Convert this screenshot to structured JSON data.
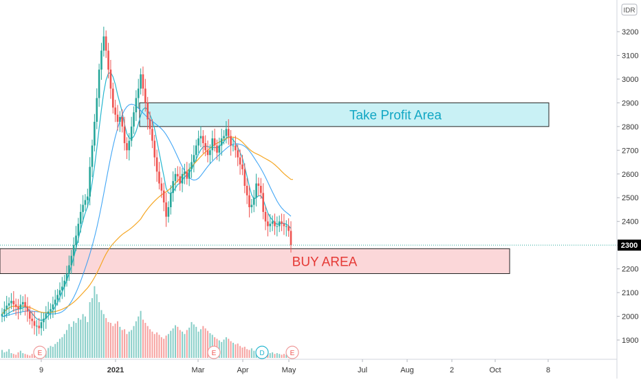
{
  "currency_badge": "IDR",
  "last_price_label": "2300",
  "colors": {
    "bull": "#26a69a",
    "bear": "#ef5350",
    "ma_fast": "#26b6cf",
    "ma_mid": "#2196f3",
    "ma_slow": "#f5a623",
    "take_profit_fill": "#c9f1f5",
    "take_profit_text": "#12a7c4",
    "buy_fill": "#fbd7d9",
    "buy_text": "#e53935",
    "last_price_badge": "#000000"
  },
  "chart_data": {
    "type": "candlestick",
    "y_axis": {
      "ticks": [
        "3200",
        "3100",
        "3000",
        "2900",
        "2800",
        "2700",
        "2600",
        "2500",
        "2400",
        "2300",
        "2200",
        "2100",
        "2000",
        "1900"
      ],
      "range": [
        1820,
        3300
      ]
    },
    "x_axis": {
      "ticks": [
        "9",
        "2021",
        "Mar",
        "Apr",
        "May",
        "Jul",
        "Aug",
        "2",
        "Oct",
        "8"
      ],
      "bold_ticks": [
        "2021"
      ]
    },
    "zones": [
      {
        "name": "take_profit",
        "label": "Take Profit Area",
        "low": 2800,
        "high": 2900
      },
      {
        "name": "buy",
        "label": "BUY AREA",
        "low": 2180,
        "high": 2285
      }
    ],
    "last_price": 2300,
    "event_markers": [
      {
        "label": "E",
        "type": "earnings"
      },
      {
        "label": "E",
        "type": "earnings"
      },
      {
        "label": "D",
        "type": "dividend"
      },
      {
        "label": "E",
        "type": "earnings"
      }
    ],
    "closes": [
      2010,
      2030,
      2045,
      2055,
      2065,
      2050,
      2040,
      2030,
      2050,
      2060,
      2040,
      2020,
      1990,
      1980,
      1960,
      1960,
      1950,
      1975,
      1990,
      2010,
      2020,
      2030,
      2050,
      2070,
      2090,
      2110,
      2125,
      2150,
      2180,
      2215,
      2255,
      2300,
      2340,
      2390,
      2440,
      2470,
      2490,
      2505,
      2630,
      2720,
      2820,
      2920,
      3040,
      3120,
      3180,
      3120,
      3040,
      2960,
      2880,
      2850,
      2820,
      2840,
      2800,
      2730,
      2700,
      2740,
      2800,
      2860,
      2920,
      2960,
      3020,
      2960,
      2900,
      2830,
      2790,
      2740,
      2670,
      2610,
      2560,
      2530,
      2480,
      2420,
      2460,
      2520,
      2570,
      2600,
      2590,
      2560,
      2600,
      2610,
      2580,
      2620,
      2650,
      2680,
      2720,
      2750,
      2760,
      2730,
      2700,
      2680,
      2700,
      2750,
      2720,
      2690,
      2720,
      2750,
      2760,
      2790,
      2760,
      2720,
      2720,
      2700,
      2670,
      2640,
      2620,
      2550,
      2510,
      2460,
      2470,
      2500,
      2560,
      2550,
      2520,
      2440,
      2400,
      2380,
      2390,
      2400,
      2380,
      2380,
      2400,
      2390,
      2380,
      2380,
      2360,
      2300
    ],
    "ma_fast": [
      2000,
      2000,
      2008,
      2014,
      2020,
      2025,
      2028,
      2030,
      2032,
      2036,
      2040,
      2035,
      2022,
      2012,
      2000,
      1990,
      1985,
      1983,
      1985,
      1992,
      2002,
      2012,
      2025,
      2040,
      2058,
      2080,
      2103,
      2127,
      2152,
      2180,
      2212,
      2248,
      2286,
      2326,
      2366,
      2404,
      2436,
      2462,
      2506,
      2564,
      2630,
      2708,
      2792,
      2872,
      2944,
      2996,
      3024,
      3028,
      3010,
      2978,
      2934,
      2898,
      2860,
      2810,
      2770,
      2752,
      2748,
      2758,
      2780,
      2812,
      2848,
      2872,
      2880,
      2870,
      2850,
      2826,
      2790,
      2740,
      2690,
      2640,
      2592,
      2540,
      2520,
      2518,
      2526,
      2540,
      2556,
      2560,
      2574,
      2588,
      2596,
      2604,
      2620,
      2640,
      2662,
      2684,
      2702,
      2714,
      2718,
      2716,
      2712,
      2712,
      2712,
      2710,
      2716,
      2726,
      2736,
      2752,
      2758,
      2752,
      2744,
      2730,
      2712,
      2690,
      2668,
      2630,
      2590,
      2548,
      2512,
      2494,
      2500,
      2508,
      2508,
      2492,
      2464,
      2436,
      2418,
      2406,
      2394,
      2388,
      2390,
      2392,
      2392,
      2388,
      2382,
      2370
    ],
    "ma_mid_tail": [
      2410,
      2420,
      2430,
      2440,
      2450,
      2458,
      2464
    ],
    "volumes": [
      20,
      14,
      16,
      22,
      12,
      10,
      8,
      14,
      18,
      12,
      10,
      8,
      6,
      10,
      8,
      6,
      8,
      14,
      22,
      18,
      25,
      30,
      28,
      35,
      40,
      48,
      52,
      60,
      70,
      85,
      78,
      92,
      88,
      100,
      96,
      110,
      104,
      90,
      140,
      150,
      180,
      160,
      140,
      120,
      110,
      100,
      90,
      88,
      80,
      86,
      92,
      78,
      70,
      72,
      60,
      66,
      70,
      80,
      92,
      104,
      118,
      96,
      88,
      80,
      72,
      66,
      60,
      64,
      58,
      52,
      48,
      56,
      60,
      68,
      74,
      82,
      78,
      70,
      66,
      60,
      70,
      76,
      90,
      84,
      78,
      66,
      72,
      80,
      74,
      68,
      62,
      58,
      52,
      48,
      44,
      40,
      46,
      52,
      48,
      42,
      38,
      34,
      36,
      30,
      26,
      28,
      22,
      20,
      24,
      18,
      16,
      14,
      20,
      18,
      16,
      12,
      12,
      14,
      10,
      12,
      10,
      8,
      10,
      8,
      6,
      10
    ],
    "volume_range": [
      0,
      190
    ]
  }
}
